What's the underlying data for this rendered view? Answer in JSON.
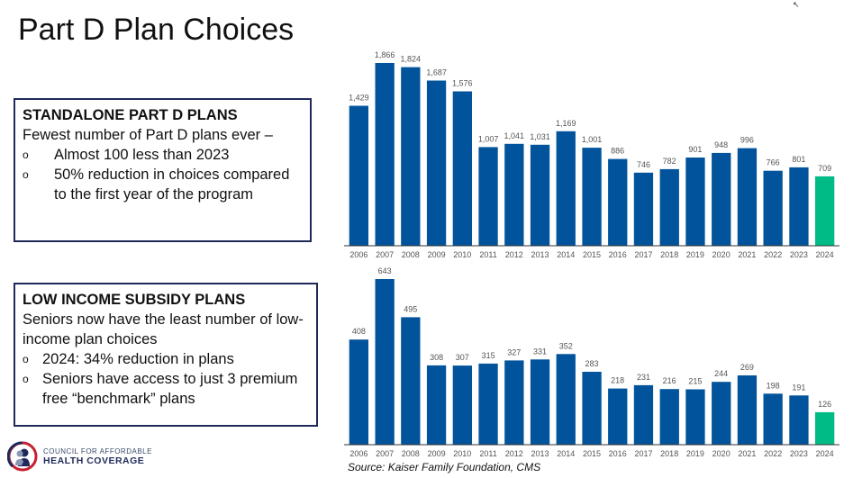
{
  "slide": {
    "title": "Part D Plan Choices",
    "source": "Source: Kaiser Family Foundation, CMS",
    "logo": {
      "line1": "COUNCIL FOR AFFORDABLE",
      "line2": "HEALTH COVERAGE",
      "icon": "silhouettes-logo-icon"
    }
  },
  "boxes": [
    {
      "heading": "STANDALONE PART D PLANS",
      "lines": [
        "Fewest number of Part D plans ever –"
      ],
      "bullets": [
        {
          "mark": "o",
          "text": "Almost 100 less than 2023"
        },
        {
          "mark": "o",
          "text": "50% reduction in choices compared to the first year of the program"
        }
      ]
    },
    {
      "heading": "LOW INCOME SUBSIDY PLANS",
      "lines": [
        "Seniors now have the least number of low-income plan choices"
      ],
      "bullets": [
        {
          "mark": "o",
          "text": "2024: 34% reduction in plans"
        },
        {
          "mark": "o",
          "text": "Seniors have access to just 3 premium free “benchmark” plans"
        }
      ]
    }
  ],
  "colors": {
    "bar": "#01549b",
    "highlight": "#00bb86",
    "label": "#555555",
    "axis": "#333333"
  },
  "chart_data": [
    {
      "type": "bar",
      "title": "Standalone Part D Plans",
      "xlabel": "",
      "ylabel": "",
      "categories": [
        "2006",
        "2007",
        "2008",
        "2009",
        "2010",
        "2011",
        "2012",
        "2013",
        "2014",
        "2015",
        "2016",
        "2017",
        "2018",
        "2019",
        "2020",
        "2021",
        "2022",
        "2023",
        "2024"
      ],
      "values": [
        1429,
        1866,
        1824,
        1687,
        1576,
        1007,
        1041,
        1031,
        1169,
        1001,
        886,
        746,
        782,
        901,
        948,
        996,
        766,
        801,
        709
      ],
      "value_labels": [
        "1,429",
        "1,866",
        "1,824",
        "1,687",
        "1,576",
        "1,007",
        "1,041",
        "1,031",
        "1,169",
        "1,001",
        "886",
        "746",
        "782",
        "901",
        "948",
        "996",
        "766",
        "801",
        "709"
      ],
      "highlight_category": "2024",
      "ylim": [
        0,
        1866
      ],
      "grid": false,
      "legend": "none"
    },
    {
      "type": "bar",
      "title": "Low Income Subsidy Plans",
      "xlabel": "",
      "ylabel": "",
      "categories": [
        "2006",
        "2007",
        "2008",
        "2009",
        "2010",
        "2011",
        "2012",
        "2013",
        "2014",
        "2015",
        "2016",
        "2017",
        "2018",
        "2019",
        "2020",
        "2021",
        "2022",
        "2023",
        "2024"
      ],
      "values": [
        408,
        643,
        495,
        308,
        307,
        315,
        327,
        331,
        352,
        283,
        218,
        231,
        216,
        215,
        244,
        269,
        198,
        191,
        126
      ],
      "value_labels": [
        "408",
        "643",
        "495",
        "308",
        "307",
        "315",
        "327",
        "331",
        "352",
        "283",
        "218",
        "231",
        "216",
        "215",
        "244",
        "269",
        "198",
        "191",
        "126"
      ],
      "highlight_category": "2024",
      "ylim": [
        0,
        643
      ],
      "grid": false,
      "legend": "none"
    }
  ]
}
